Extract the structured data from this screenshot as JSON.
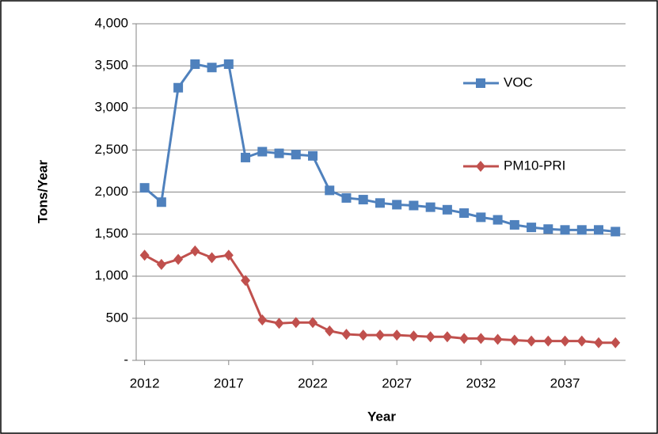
{
  "chart_data": {
    "type": "line",
    "x_label": "Year",
    "y_label": "Tons/Year",
    "x": [
      2012,
      2013,
      2014,
      2015,
      2016,
      2017,
      2018,
      2019,
      2020,
      2021,
      2022,
      2023,
      2024,
      2025,
      2026,
      2027,
      2028,
      2029,
      2030,
      2031,
      2032,
      2033,
      2034,
      2035,
      2036,
      2037,
      2038,
      2039,
      2040
    ],
    "series": [
      {
        "name": "VOC",
        "color": "#4f81bd",
        "marker": "square",
        "values": [
          2050,
          1880,
          3240,
          3520,
          3480,
          3520,
          2410,
          2480,
          2460,
          2445,
          2430,
          2020,
          1930,
          1910,
          1870,
          1850,
          1840,
          1820,
          1790,
          1750,
          1700,
          1670,
          1610,
          1580,
          1560,
          1550,
          1550,
          1550,
          1530
        ]
      },
      {
        "name": "PM10-PRI",
        "color": "#c0504d",
        "marker": "diamond",
        "values": [
          1250,
          1140,
          1200,
          1300,
          1220,
          1250,
          950,
          480,
          440,
          450,
          450,
          350,
          310,
          300,
          300,
          300,
          290,
          280,
          280,
          260,
          260,
          250,
          240,
          230,
          230,
          230,
          230,
          210,
          210
        ]
      }
    ],
    "xlim": [
      2011.5,
      2040.6
    ],
    "xticks": [
      2012,
      2017,
      2022,
      2027,
      2032,
      2037
    ],
    "ylim": [
      0,
      4000
    ],
    "yticks": [
      {
        "value": 0,
        "label": "-"
      },
      500,
      {
        "value": 1000,
        "label": "1,000"
      },
      {
        "value": 1500,
        "label": "1,500"
      },
      {
        "value": 2000,
        "label": "2,000"
      },
      {
        "value": 2500,
        "label": "2,500"
      },
      {
        "value": 3000,
        "label": "3,000"
      },
      {
        "value": 3500,
        "label": "3,500"
      },
      {
        "value": 4000,
        "label": "4,000"
      }
    ],
    "grid": true
  }
}
